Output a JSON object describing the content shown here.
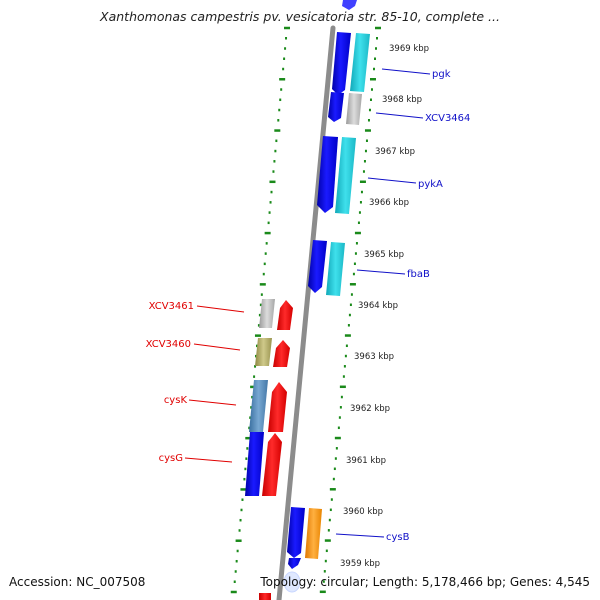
{
  "title": "Xanthomonas campestris pv. vesicatoria str. 85-10, complete ...",
  "footer": {
    "accession": "Accession: NC_007508",
    "summary": "Topology: circular; Length: 5,178,466 bp; Genes: 4,545"
  },
  "colors": {
    "forward_label": "#1010c8",
    "reverse_label": "#e00000",
    "tick": "#1a8a1a",
    "backbone": "#8c8c8c"
  },
  "kbp_labels": [
    "3969 kbp",
    "3968 kbp",
    "3967 kbp",
    "3966 kbp",
    "3965 kbp",
    "3964 kbp",
    "3963 kbp",
    "3962 kbp",
    "3961 kbp",
    "3960 kbp",
    "3959 kbp"
  ],
  "gene_labels": [
    {
      "name": "pgk",
      "side": "right"
    },
    {
      "name": "XCV3464",
      "side": "right"
    },
    {
      "name": "pykA",
      "side": "right"
    },
    {
      "name": "fbaB",
      "side": "right"
    },
    {
      "name": "XCV3461",
      "side": "left"
    },
    {
      "name": "XCV3460",
      "side": "left"
    },
    {
      "name": "cysK",
      "side": "left"
    },
    {
      "name": "cysG",
      "side": "left"
    },
    {
      "name": "cysB",
      "side": "right"
    }
  ]
}
